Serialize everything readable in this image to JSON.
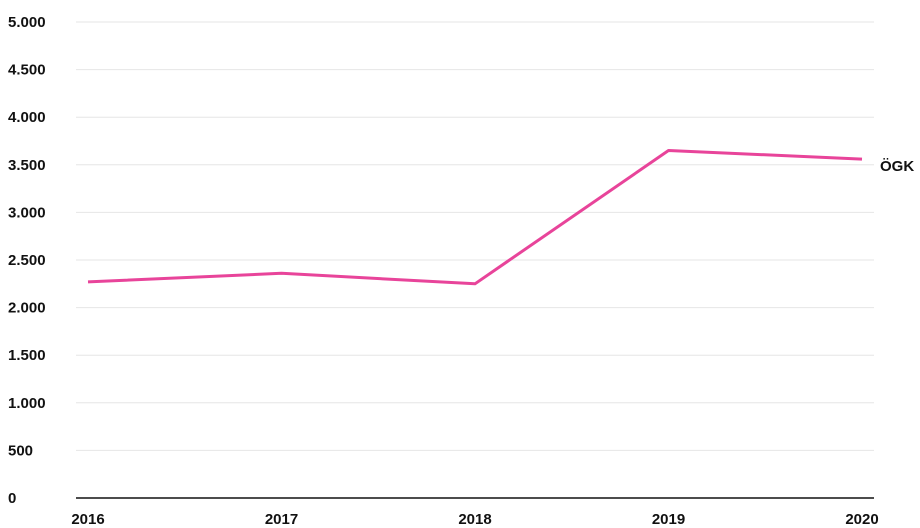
{
  "chart_data": {
    "type": "line",
    "x": [
      "2016",
      "2017",
      "2018",
      "2019",
      "2020"
    ],
    "series": [
      {
        "name": "ÖGK",
        "values": [
          2270,
          2360,
          2250,
          3650,
          3560
        ],
        "color": "#e8449a"
      }
    ],
    "ylim": [
      0,
      5000
    ],
    "yticks": [
      0,
      500,
      1000,
      1500,
      2000,
      2500,
      3000,
      3500,
      4000,
      4500,
      5000
    ],
    "ytick_labels": [
      "0",
      "500",
      "1.000",
      "1.500",
      "2.000",
      "2.500",
      "3.000",
      "3.500",
      "4.000",
      "4.500",
      "5.000"
    ],
    "grid": true,
    "legend": "end-of-line label"
  }
}
